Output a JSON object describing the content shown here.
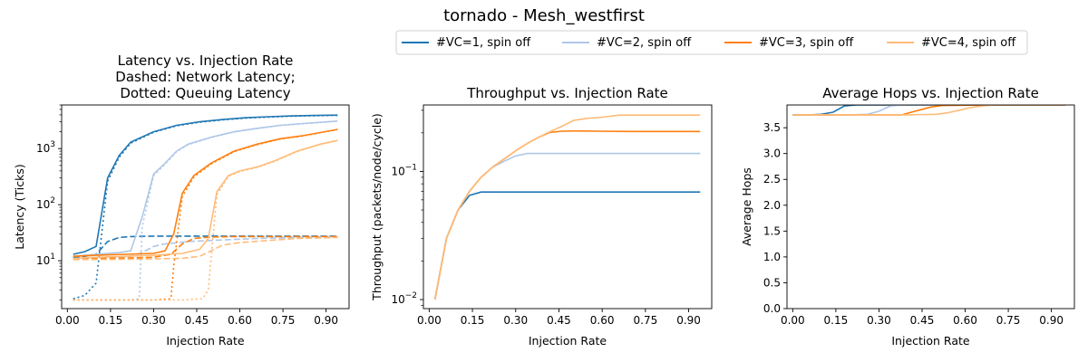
{
  "figure_title": "tornado - Mesh_westfirst",
  "legend": {
    "placement": "top-center",
    "entries": [
      {
        "label": "#VC=1, spin off",
        "color": "#1f77b4"
      },
      {
        "label": "#VC=2, spin off",
        "color": "#aec7e8"
      },
      {
        "label": "#VC=3, spin off",
        "color": "#ff7f0e"
      },
      {
        "label": "#VC=4, spin off",
        "color": "#ffbb78"
      }
    ]
  },
  "chart_data": [
    {
      "type": "line",
      "title": [
        "Latency vs. Injection Rate",
        "Dashed: Network Latency;",
        "Dotted: Queuing Latency"
      ],
      "xlabel": "Injection Rate",
      "ylabel": "Latency (Ticks)",
      "yscale": "log",
      "xlim": [
        -0.02,
        0.98
      ],
      "ylim": [
        1.4,
        6000
      ],
      "xticks": [
        "0.00",
        "0.15",
        "0.30",
        "0.45",
        "0.60",
        "0.75",
        "0.90"
      ],
      "yticks": [
        "10^1",
        "10^2",
        "10^3"
      ],
      "grid": false,
      "series": [
        {
          "legend_index": 0,
          "style": "solid",
          "x": [
            0.02,
            0.06,
            0.1,
            0.14,
            0.18,
            0.22,
            0.3,
            0.38,
            0.46,
            0.54,
            0.62,
            0.7,
            0.78,
            0.86,
            0.94
          ],
          "y": [
            13,
            14.5,
            18,
            300,
            750,
            1300,
            2000,
            2600,
            3000,
            3300,
            3550,
            3700,
            3820,
            3900,
            3950
          ]
        },
        {
          "legend_index": 0,
          "style": "dashed",
          "x": [
            0.02,
            0.06,
            0.1,
            0.14,
            0.18,
            0.22,
            0.3,
            0.38,
            0.46,
            0.54,
            0.62,
            0.7,
            0.78,
            0.86,
            0.94
          ],
          "y": [
            11.5,
            12,
            13,
            22,
            26,
            27,
            27.5,
            27.5,
            27.5,
            27.5,
            27.5,
            27.5,
            27.5,
            27.5,
            27.5
          ]
        },
        {
          "legend_index": 0,
          "style": "dotted",
          "x": [
            0.02,
            0.06,
            0.1,
            0.14,
            0.18,
            0.22,
            0.3,
            0.38,
            0.46,
            0.54,
            0.62,
            0.7,
            0.78,
            0.86,
            0.94
          ],
          "y": [
            2.1,
            2.4,
            4,
            260,
            700,
            1250,
            1950,
            2550,
            2950,
            3250,
            3500,
            3650,
            3780,
            3860,
            3920
          ]
        },
        {
          "legend_index": 1,
          "style": "solid",
          "x": [
            0.02,
            0.06,
            0.1,
            0.14,
            0.18,
            0.22,
            0.26,
            0.3,
            0.34,
            0.38,
            0.42,
            0.5,
            0.58,
            0.66,
            0.74,
            0.82,
            0.94
          ],
          "y": [
            12,
            12.5,
            13,
            13.5,
            14,
            15,
            60,
            350,
            550,
            900,
            1200,
            1600,
            2000,
            2300,
            2600,
            2800,
            3100
          ]
        },
        {
          "legend_index": 1,
          "style": "dashed",
          "x": [
            0.02,
            0.1,
            0.18,
            0.22,
            0.26,
            0.3,
            0.34,
            0.42,
            0.54,
            0.66,
            0.8,
            0.94
          ],
          "y": [
            11,
            11.2,
            11.5,
            12,
            14,
            18,
            20,
            22,
            23.5,
            25,
            26,
            27
          ]
        },
        {
          "legend_index": 1,
          "style": "dotted",
          "x": [
            0.02,
            0.1,
            0.18,
            0.22,
            0.25,
            0.26,
            0.3,
            0.34,
            0.38,
            0.42,
            0.5,
            0.58,
            0.66,
            0.74,
            0.82,
            0.94
          ],
          "y": [
            2,
            2,
            2,
            2,
            2.1,
            40,
            330,
            530,
            880,
            1180,
            1580,
            1980,
            2280,
            2580,
            2780,
            3080
          ]
        },
        {
          "legend_index": 2,
          "style": "solid",
          "x": [
            0.02,
            0.1,
            0.2,
            0.3,
            0.34,
            0.37,
            0.4,
            0.44,
            0.5,
            0.58,
            0.66,
            0.74,
            0.82,
            0.94
          ],
          "y": [
            12,
            12.5,
            13,
            13.5,
            15,
            30,
            160,
            330,
            550,
            900,
            1200,
            1500,
            1700,
            2200
          ]
        },
        {
          "legend_index": 2,
          "style": "dashed",
          "x": [
            0.02,
            0.1,
            0.2,
            0.3,
            0.36,
            0.4,
            0.44,
            0.5,
            0.58,
            0.66,
            0.8,
            0.94
          ],
          "y": [
            11,
            11,
            11.2,
            11.5,
            13,
            20,
            25,
            26.5,
            27,
            27,
            27,
            27
          ]
        },
        {
          "legend_index": 2,
          "style": "dotted",
          "x": [
            0.02,
            0.1,
            0.2,
            0.3,
            0.36,
            0.37,
            0.4,
            0.44,
            0.5,
            0.58,
            0.66,
            0.74,
            0.82,
            0.94
          ],
          "y": [
            2,
            2,
            2,
            2,
            2.1,
            8,
            140,
            310,
            530,
            880,
            1180,
            1480,
            1680,
            2180
          ]
        },
        {
          "legend_index": 3,
          "style": "solid",
          "x": [
            0.02,
            0.1,
            0.2,
            0.3,
            0.4,
            0.46,
            0.49,
            0.52,
            0.56,
            0.6,
            0.66,
            0.72,
            0.8,
            0.88,
            0.94
          ],
          "y": [
            11,
            11.5,
            12,
            12.5,
            13.5,
            16,
            25,
            170,
            330,
            400,
            470,
            600,
            900,
            1200,
            1400
          ]
        },
        {
          "legend_index": 3,
          "style": "dashed",
          "x": [
            0.02,
            0.1,
            0.2,
            0.3,
            0.4,
            0.46,
            0.5,
            0.54,
            0.6,
            0.7,
            0.8,
            0.94
          ],
          "y": [
            10.5,
            10.5,
            10.6,
            10.8,
            11,
            12,
            15,
            19,
            21,
            23,
            25,
            26
          ]
        },
        {
          "legend_index": 3,
          "style": "dotted",
          "x": [
            0.02,
            0.1,
            0.2,
            0.3,
            0.4,
            0.47,
            0.49,
            0.52,
            0.56,
            0.6,
            0.66,
            0.72,
            0.8,
            0.88,
            0.94
          ],
          "y": [
            2,
            2,
            2,
            2,
            2,
            2.1,
            3,
            150,
            320,
            390,
            460,
            590,
            890,
            1190,
            1390
          ]
        }
      ]
    },
    {
      "type": "line",
      "title": [
        "Throughput vs. Injection Rate"
      ],
      "xlabel": "Injection Rate",
      "ylabel": "Throughput (packets/node/cycle)",
      "yscale": "log",
      "xlim": [
        -0.02,
        0.98
      ],
      "ylim": [
        0.0085,
        0.33
      ],
      "xticks": [
        "0.00",
        "0.15",
        "0.30",
        "0.45",
        "0.60",
        "0.75",
        "0.90"
      ],
      "yticks": [
        "10^-2",
        "10^-1"
      ],
      "grid": false,
      "series": [
        {
          "legend_index": 0,
          "style": "solid",
          "x": [
            0.02,
            0.06,
            0.1,
            0.14,
            0.18,
            0.22,
            0.3,
            0.4,
            0.5,
            0.6,
            0.7,
            0.8,
            0.94
          ],
          "y": [
            0.01,
            0.03,
            0.05,
            0.065,
            0.069,
            0.069,
            0.069,
            0.069,
            0.069,
            0.069,
            0.069,
            0.069,
            0.069
          ]
        },
        {
          "legend_index": 1,
          "style": "solid",
          "x": [
            0.02,
            0.06,
            0.1,
            0.14,
            0.18,
            0.22,
            0.26,
            0.3,
            0.34,
            0.4,
            0.5,
            0.6,
            0.7,
            0.8,
            0.94
          ],
          "y": [
            0.01,
            0.03,
            0.05,
            0.07,
            0.09,
            0.108,
            0.12,
            0.132,
            0.138,
            0.138,
            0.138,
            0.138,
            0.138,
            0.138,
            0.138
          ]
        },
        {
          "legend_index": 2,
          "style": "solid",
          "x": [
            0.02,
            0.06,
            0.1,
            0.14,
            0.18,
            0.22,
            0.26,
            0.3,
            0.34,
            0.38,
            0.42,
            0.46,
            0.5,
            0.6,
            0.7,
            0.8,
            0.94
          ],
          "y": [
            0.01,
            0.03,
            0.05,
            0.07,
            0.09,
            0.108,
            0.125,
            0.145,
            0.165,
            0.185,
            0.202,
            0.206,
            0.207,
            0.206,
            0.205,
            0.205,
            0.205
          ]
        },
        {
          "legend_index": 3,
          "style": "solid",
          "x": [
            0.02,
            0.06,
            0.1,
            0.14,
            0.18,
            0.22,
            0.26,
            0.3,
            0.34,
            0.38,
            0.42,
            0.46,
            0.5,
            0.55,
            0.6,
            0.66,
            0.72,
            0.8,
            0.94
          ],
          "y": [
            0.01,
            0.03,
            0.05,
            0.07,
            0.09,
            0.108,
            0.125,
            0.145,
            0.165,
            0.185,
            0.205,
            0.225,
            0.25,
            0.26,
            0.265,
            0.275,
            0.275,
            0.275,
            0.275
          ]
        }
      ]
    },
    {
      "type": "line",
      "title": [
        "Average Hops vs. Injection Rate"
      ],
      "xlabel": "Injection Rate",
      "ylabel": "Average Hops",
      "yscale": "linear",
      "xlim": [
        -0.02,
        0.98
      ],
      "ylim": [
        0,
        3.94
      ],
      "xticks": [
        "0.00",
        "0.15",
        "0.30",
        "0.45",
        "0.60",
        "0.75",
        "0.90"
      ],
      "yticks": [
        "0.0",
        "0.5",
        "1.0",
        "1.5",
        "2.0",
        "2.5",
        "3.0",
        "3.5"
      ],
      "grid": false,
      "series": [
        {
          "legend_index": 0,
          "style": "solid",
          "x": [
            0.0,
            0.06,
            0.1,
            0.14,
            0.18,
            0.22,
            0.3,
            0.5,
            0.7,
            0.95
          ],
          "y": [
            3.75,
            3.75,
            3.76,
            3.8,
            3.92,
            3.94,
            3.94,
            3.94,
            3.94,
            3.94
          ]
        },
        {
          "legend_index": 1,
          "style": "solid",
          "x": [
            0.0,
            0.1,
            0.2,
            0.26,
            0.3,
            0.34,
            0.38,
            0.5,
            0.7,
            0.95
          ],
          "y": [
            3.75,
            3.75,
            3.75,
            3.76,
            3.82,
            3.92,
            3.94,
            3.94,
            3.94,
            3.94
          ]
        },
        {
          "legend_index": 2,
          "style": "solid",
          "x": [
            0.0,
            0.1,
            0.2,
            0.3,
            0.38,
            0.4,
            0.44,
            0.48,
            0.52,
            0.7,
            0.95
          ],
          "y": [
            3.75,
            3.75,
            3.75,
            3.75,
            3.75,
            3.78,
            3.84,
            3.9,
            3.93,
            3.94,
            3.94
          ]
        },
        {
          "legend_index": 3,
          "style": "solid",
          "x": [
            0.0,
            0.1,
            0.2,
            0.3,
            0.4,
            0.5,
            0.54,
            0.58,
            0.62,
            0.66,
            0.7,
            0.8,
            0.95
          ],
          "y": [
            3.75,
            3.75,
            3.75,
            3.75,
            3.75,
            3.76,
            3.79,
            3.84,
            3.89,
            3.92,
            3.94,
            3.94,
            3.94
          ]
        }
      ]
    }
  ]
}
